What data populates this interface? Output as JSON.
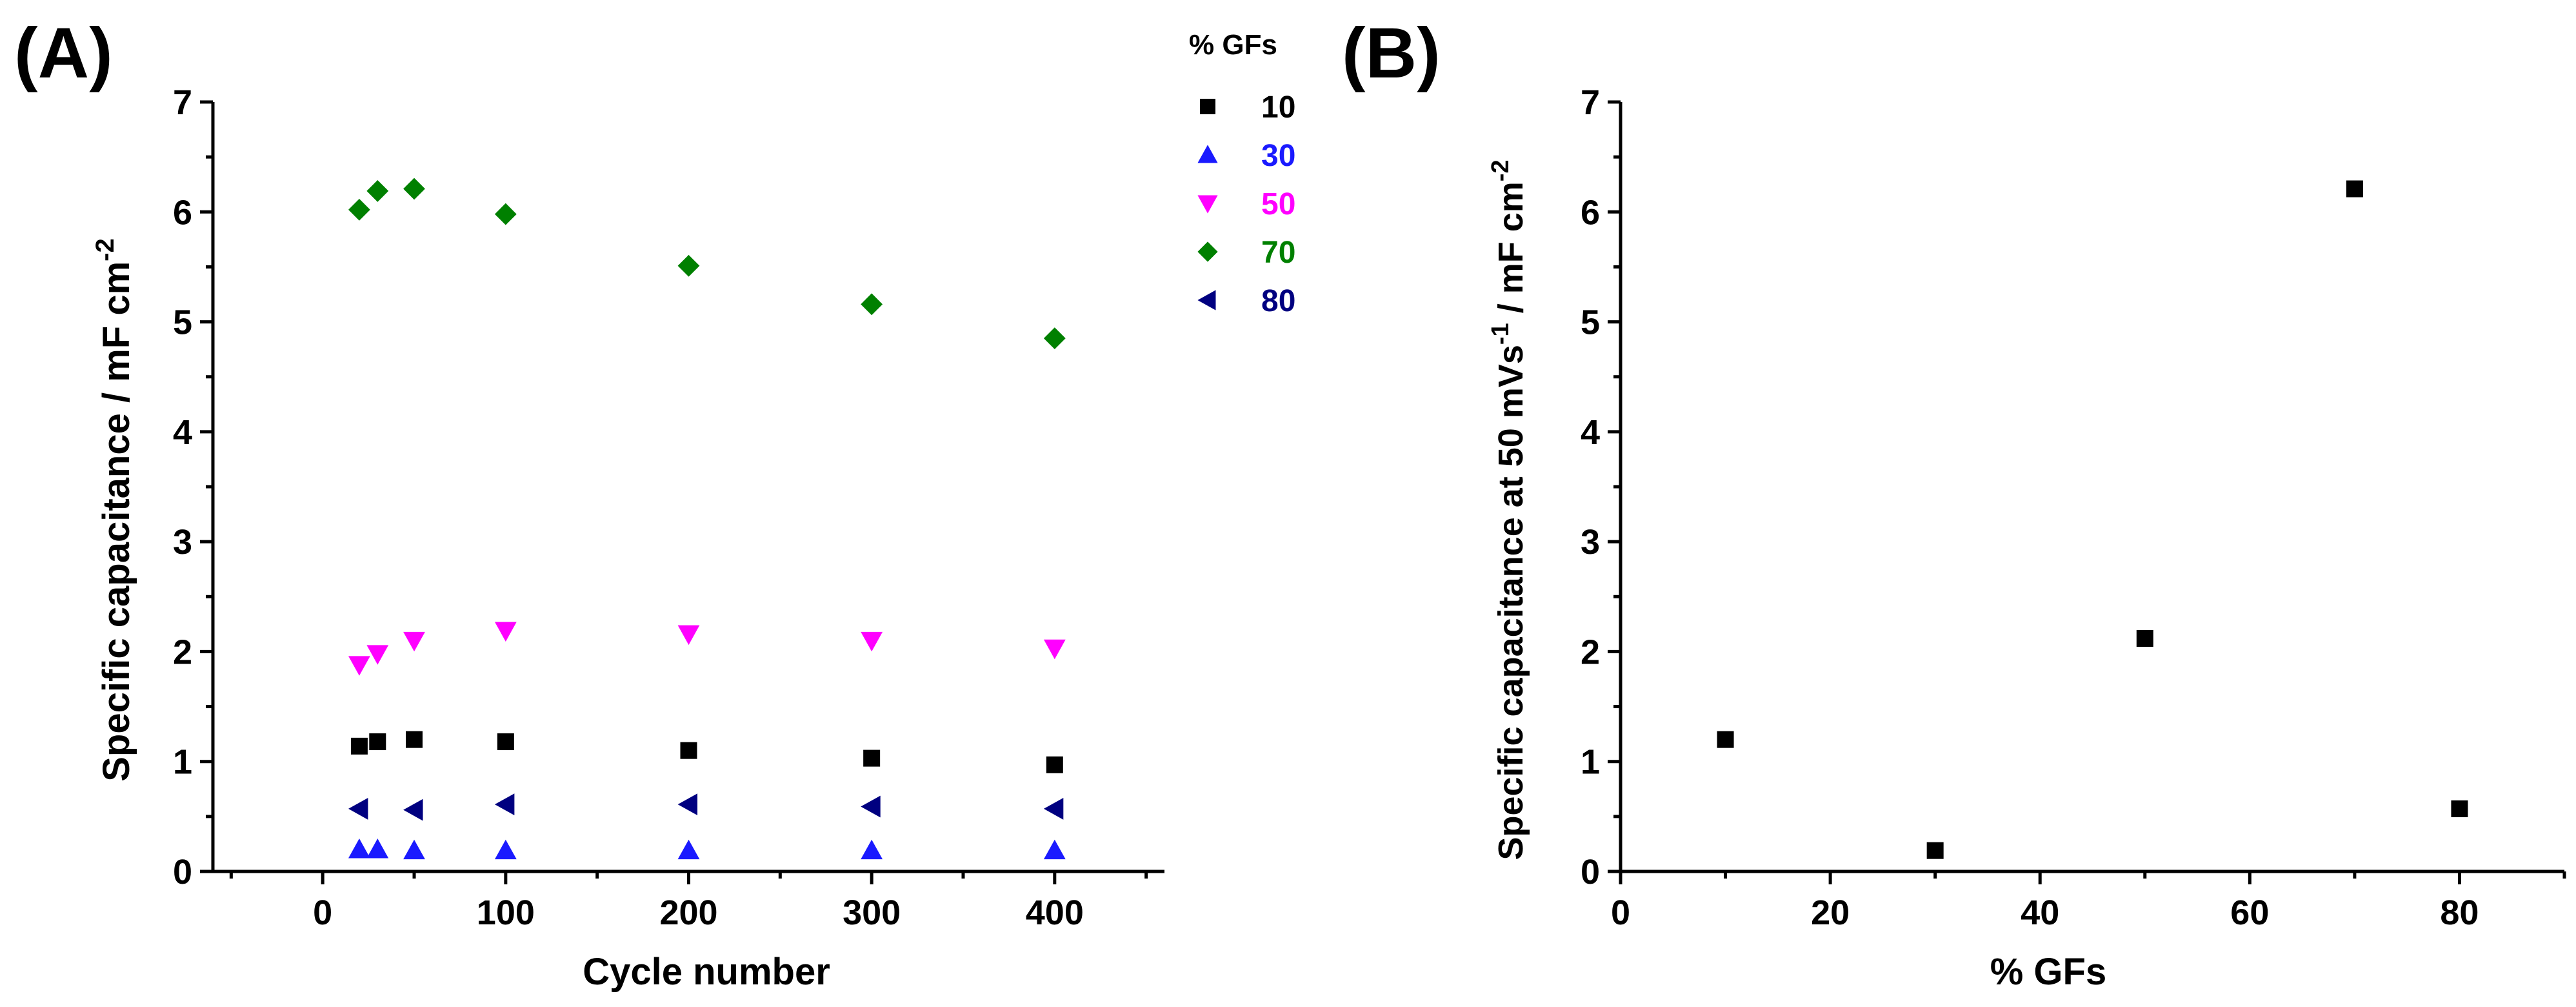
{
  "chart_data": [
    {
      "panel_label": "(A)",
      "type": "scatter",
      "title": "",
      "xlabel": "Cycle number",
      "ylabel_main": "Specific capacitance  / mF cm",
      "ylabel_sup": "-2",
      "xlim": [
        -60,
        460
      ],
      "ylim": [
        0,
        7
      ],
      "xticks": [
        0,
        100,
        200,
        300,
        400
      ],
      "yticks": [
        0,
        1,
        2,
        3,
        4,
        5,
        6,
        7
      ],
      "grid": false,
      "legend": {
        "title": "% GFs",
        "placement": "top-right, outside plot"
      },
      "series": [
        {
          "name": "10",
          "marker": "square",
          "color": "#000000",
          "x": [
            20,
            30,
            50,
            100,
            200,
            300,
            400
          ],
          "y": [
            1.14,
            1.18,
            1.2,
            1.18,
            1.1,
            1.03,
            0.97
          ]
        },
        {
          "name": "30",
          "marker": "triangle-up",
          "color": "#1a1aff",
          "x": [
            20,
            30,
            50,
            100,
            200,
            300,
            400
          ],
          "y": [
            0.2,
            0.2,
            0.19,
            0.19,
            0.19,
            0.19,
            0.19
          ]
        },
        {
          "name": "50",
          "marker": "triangle-down",
          "color": "#ff00ff",
          "x": [
            20,
            30,
            50,
            100,
            200,
            300,
            400
          ],
          "y": [
            1.88,
            1.98,
            2.1,
            2.19,
            2.16,
            2.1,
            2.03
          ]
        },
        {
          "name": "70",
          "marker": "diamond",
          "color": "#008000",
          "x": [
            20,
            30,
            50,
            100,
            200,
            300,
            400
          ],
          "y": [
            6.02,
            6.19,
            6.21,
            5.98,
            5.51,
            5.16,
            4.85
          ]
        },
        {
          "name": "80",
          "marker": "triangle-left",
          "color": "#000080",
          "x": [
            20,
            50,
            100,
            200,
            300,
            400
          ],
          "y": [
            0.57,
            0.56,
            0.61,
            0.61,
            0.59,
            0.57
          ]
        }
      ]
    },
    {
      "panel_label": "(B)",
      "type": "scatter",
      "title": "",
      "xlabel": "% GFs",
      "ylabel_main": "Specific capacitance at 50 mVs",
      "ylabel_sup1": "-1",
      "ylabel_mid": " / mF cm",
      "ylabel_sup2": "-2",
      "xlim": [
        0,
        90
      ],
      "ylim": [
        0,
        7
      ],
      "xticks": [
        0,
        20,
        40,
        60,
        80
      ],
      "yticks": [
        0,
        1,
        2,
        3,
        4,
        5,
        6,
        7
      ],
      "grid": false,
      "series": [
        {
          "marker": "square",
          "color": "#000000",
          "x": [
            10,
            30,
            50,
            70,
            80
          ],
          "y": [
            1.2,
            0.19,
            2.12,
            6.21,
            0.57
          ]
        }
      ]
    }
  ]
}
